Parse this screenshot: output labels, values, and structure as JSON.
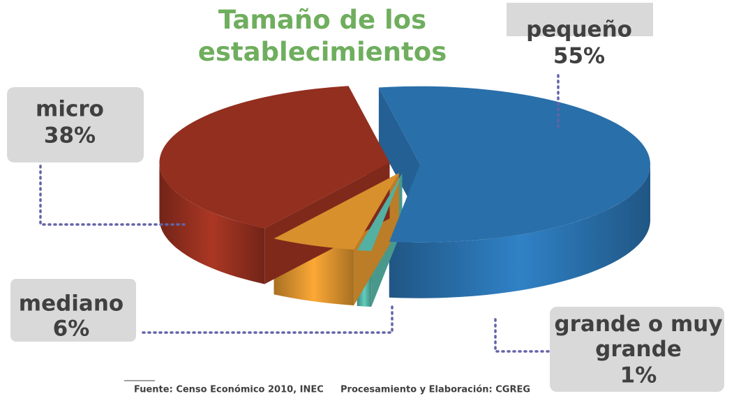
{
  "chart_data": {
    "type": "pie",
    "title": "Tamaño de los establecimientos",
    "categories": [
      "pequeño",
      "grande o muy grande",
      "mediano",
      "micro"
    ],
    "values": [
      55,
      1,
      6,
      38
    ],
    "value_labels": [
      "55%",
      "1%",
      "6%",
      "38%"
    ],
    "colors": [
      "#2e7bbd",
      "#5cc4b4",
      "#f0a032",
      "#a33422"
    ],
    "source": "Fuente: Censo Económico 2010, INEC",
    "credit": "Procesamiento y Elaboración: CGREG"
  }
}
